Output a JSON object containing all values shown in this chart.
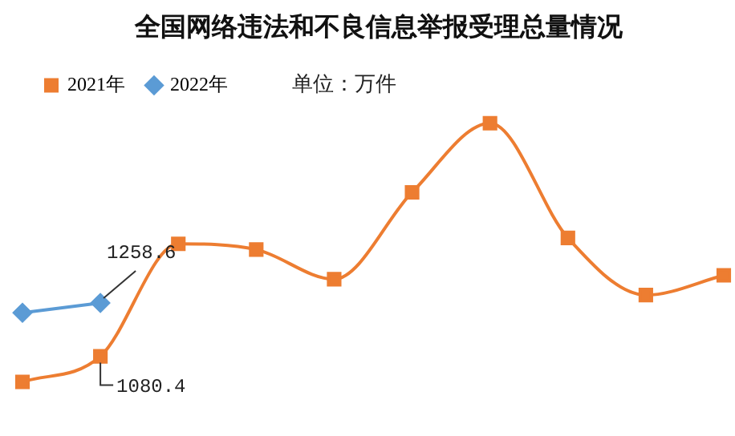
{
  "chart_data": {
    "type": "line",
    "title": "全国网络违法和不良信息举报受理总量情况",
    "annotations": [
      "单位：万件"
    ],
    "legend": "top",
    "categories": [
      null,
      null,
      null,
      null,
      null,
      null,
      null,
      null,
      null,
      null
    ],
    "series": [
      {
        "name": "2021年",
        "color": "#ed7d31",
        "marker": "square",
        "values": [
          995,
          1080.4,
          1456,
          1437,
          1338,
          1628,
          1859,
          1476,
          1285,
          1351
        ],
        "value_labels": [
          null,
          "1080.4",
          null,
          null,
          null,
          null,
          null,
          null,
          null,
          null
        ]
      },
      {
        "name": "2022年",
        "color": "#5b9bd5",
        "marker": "diamond",
        "values": [
          1226,
          1258.6,
          null,
          null,
          null,
          null,
          null,
          null,
          null,
          null
        ],
        "value_labels": [
          null,
          "1258.6",
          null,
          null,
          null,
          null,
          null,
          null,
          null,
          null
        ]
      }
    ]
  }
}
